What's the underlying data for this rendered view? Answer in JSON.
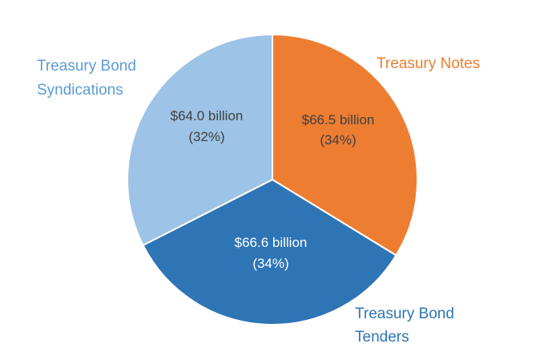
{
  "chart_data": {
    "type": "pie",
    "title": "",
    "unit": "$ billion",
    "slices": [
      {
        "label_lines": [
          "Treasury Notes"
        ],
        "value": 66.5,
        "value_text": "$66.5 billion",
        "percent_text": "(34%)",
        "color": "#ED7D31",
        "label_color": "#ED7D31",
        "value_text_color": "#404040"
      },
      {
        "label_lines": [
          "Treasury Bond",
          "Tenders"
        ],
        "value": 66.6,
        "value_text": "$66.6 billion",
        "percent_text": "(34%)",
        "color": "#2E75B6",
        "label_color": "#2E75B6",
        "value_text_color": "#FFFFFF"
      },
      {
        "label_lines": [
          "Treasury Bond",
          "Syndications"
        ],
        "value": 64.0,
        "value_text": "$64.0 billion",
        "percent_text": "(32%)",
        "color": "#9DC3E6",
        "label_color": "#5B9BD5",
        "value_text_color": "#404040"
      }
    ],
    "legend": "none",
    "slice_border_color": "#FFFFFF"
  }
}
